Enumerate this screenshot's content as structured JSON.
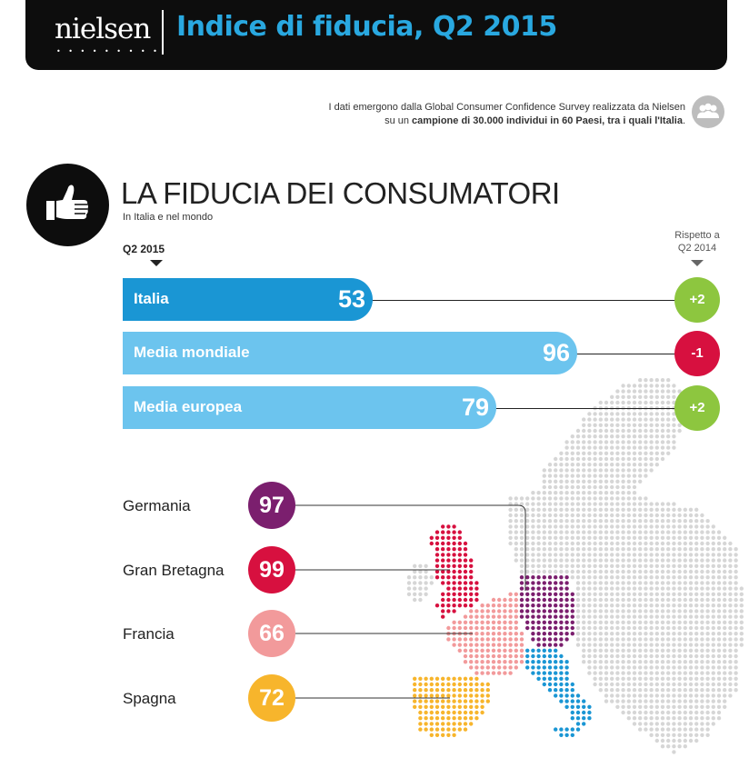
{
  "header": {
    "logo": "nielsen",
    "logo_dots": "• • • • • • • • •",
    "title": "Indice di fiducia, Q2 2015"
  },
  "survey": {
    "line1": "I dati emergono dalla Global Consumer Confidence Survey realizzata da Nielsen",
    "line2_prefix": "su un ",
    "line2_bold": "campione di 30.000 individui in 60 Paesi, tra i quali l'Italia",
    "line2_suffix": "."
  },
  "section": {
    "title": "LA FIDUCIA DEI CONSUMATORI",
    "subtitle": "In Italia e nel mondo"
  },
  "labels": {
    "period": "Q2 2015",
    "compare_line1": "Rispetto a",
    "compare_line2": "Q2  2014"
  },
  "bars": [
    {
      "label": "Italia",
      "value": "53",
      "delta": "+2",
      "color": "#1a96d4",
      "delta_color": "#8dc63f"
    },
    {
      "label": "Media mondiale",
      "value": "96",
      "delta": "-1",
      "color": "#6cc4ee",
      "delta_color": "#d7103f"
    },
    {
      "label": "Media europea",
      "value": "79",
      "delta": "+2",
      "color": "#6cc4ee",
      "delta_color": "#8dc63f"
    }
  ],
  "countries": [
    {
      "name": "Germania",
      "value": "97",
      "color": "#7b1f6e"
    },
    {
      "name": "Gran Bretagna",
      "value": "99",
      "color": "#d7103f"
    },
    {
      "name": "Francia",
      "value": "66",
      "color": "#f29a9b"
    },
    {
      "name": "Spagna",
      "value": "72",
      "color": "#f7b52c"
    }
  ],
  "map_colors": {
    "base": "#d6d6d6",
    "italy": "#1a96d4"
  },
  "icons": [
    "thumbs-up-icon",
    "people-icon"
  ]
}
